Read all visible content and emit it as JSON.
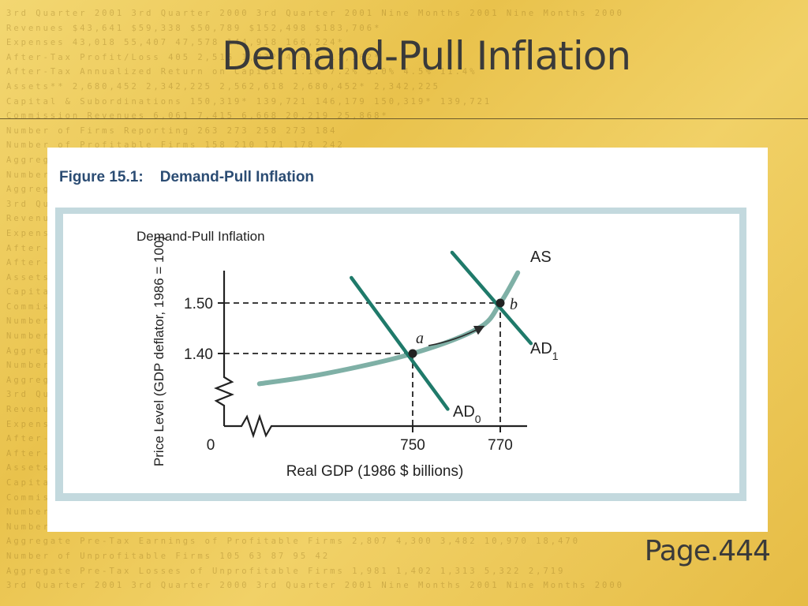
{
  "slide": {
    "title": "Demand-Pull Inflation",
    "page_ref": "Page.444",
    "figure_caption": "Figure 15.1:    Demand-Pull Inflation",
    "background_text": [
      "3rd Quarter 2001 3rd Quarter 2000 3rd Quarter 2001 Nine Months 2001 Nine Months 2000",
      "Revenues $43,641 $59,338 $50,789 $152,498 $183,706*",
      "Expenses 43,018 55,407 47,578 144,918 166,224*",
      "After-Tax Profit/Loss 405 2,516 1,832 4,927 11,362*",
      "After-Tax Annualized Return on Capital 1.1% 7.2% 5.0% 4.5% 11.4%",
      "Assets** 2,680,452 2,342,225 2,562,618 2,680,452* 2,342,225",
      "Capital & Subordinations 150,319* 139,721 146,179 150,319* 139,721",
      "Commission Revenues 6,061 7,415 6,668 20,219 25,868*",
      "Number of Firms Reporting 263 273 258 273 184",
      "Number of Profitable Firms 158 210 171 178 242",
      "Aggregate Pre-Tax Earnings of Profitable Firms 2,807 4,300 3,482 10,970 18,470",
      "Number of Unprofitable Firms 105 63 87 95 42",
      "Aggregate Pre-Tax Losses of Unprofitable Firms 1,981 1,402 1,313 5,322 2,719",
      "3rd Quarter 2001 3rd Quarter 2000 3rd Quarter 2001 Nine Months 2001 Nine Months 2000",
      "Revenues $43,641 $59,338 $50,789 $152,498 $183,706*",
      "Expenses 43,018 55,407 47,578 144,918 166,224*",
      "After-Tax Profit/Loss 405 2,516 1,832 4,927 11,362*",
      "After-Tax Annualized Return on Capital 1.1% 7.2% 5.0% 4.5% 11.4%",
      "Assets** 2,680,452 2,342,225 2,562,618 2,680,452* 2,342,225",
      "Capital & Subordinations 150,319* 139,721 146,179 150,319* 139,721",
      "Commission Revenues 6,061 7,415 6,668 20,219 25,868*",
      "Number of Firms Reporting 263 273 258 273 184",
      "Number of Profitable Firms 158 210 171 178 242",
      "Aggregate Pre-Tax Earnings of Profitable Firms 2,807 4,300 3,482 10,970 18,470",
      "Number of Unprofitable Firms 105 63 87 95 42",
      "Aggregate Pre-Tax Losses of Unprofitable Firms 1,981 1,402 1,313 5,322 2,719",
      "3rd Quarter 2001 3rd Quarter 2000 3rd Quarter 2001 Nine Months 2001 Nine Months 2000",
      "Revenues $43,641 $59,338 $50,789 $152,498 $183,706*",
      "Expenses 43,018 55,407 47,578 144,918 166,224*",
      "After-Tax Profit/Loss 405 2,516 1,832 4,927 11,362*",
      "After-Tax Annualized Return on Capital 1.1% 7.2% 5.0% 4.5% 11.4%",
      "Assets** 2,680,452 2,342,225 2,562,618 2,680,452* 2,342,225",
      "Capital & Subordinations 150,319* 139,721 146,179 150,319* 139,721",
      "Commission Revenues 6,061 7,415 6,668 20,219 25,868*",
      "Number of Firms Reporting 263 273 258 273 184",
      "Number of Profitable Firms 158 210 171 178 242",
      "Aggregate Pre-Tax Earnings of Profitable Firms 2,807 4,300 3,482 10,970 18,470",
      "Number of Unprofitable Firms 105 63 87 95 42",
      "Aggregate Pre-Tax Losses of Unprofitable Firms 1,981 1,402 1,313 5,322 2,719",
      "3rd Quarter 2001 3rd Quarter 2000 3rd Quarter 2001 Nine Months 2001 Nine Months 2000"
    ]
  },
  "chart_data": {
    "type": "line",
    "title": "Demand-Pull Inflation",
    "xlabel": "Real GDP (1986 $ billions)",
    "ylabel": "Price Level (GDP deflator, 1986 = 100)",
    "origin_label": "0",
    "x_ticks": [
      750,
      770
    ],
    "y_ticks": [
      1.4,
      1.5
    ],
    "axis_breaks": true,
    "grid": false,
    "legend": "inline",
    "series": [
      {
        "name": "AS",
        "color": "#7fb0a6",
        "points": [
          [
            715,
            1.34
          ],
          [
            730,
            1.36
          ],
          [
            750,
            1.4
          ],
          [
            765,
            1.45
          ],
          [
            770,
            1.5
          ],
          [
            774,
            1.56
          ]
        ]
      },
      {
        "name": "AD0",
        "color": "#1f7a6a",
        "points": [
          [
            736,
            1.55
          ],
          [
            758,
            1.29
          ]
        ]
      },
      {
        "name": "AD1",
        "color": "#1f7a6a",
        "points": [
          [
            759,
            1.6
          ],
          [
            777,
            1.42
          ]
        ]
      }
    ],
    "points": [
      {
        "label": "a",
        "x": 750,
        "y": 1.4
      },
      {
        "label": "b",
        "x": 770,
        "y": 1.5
      }
    ],
    "annotations": [
      "arrow from a to b along AS"
    ]
  }
}
